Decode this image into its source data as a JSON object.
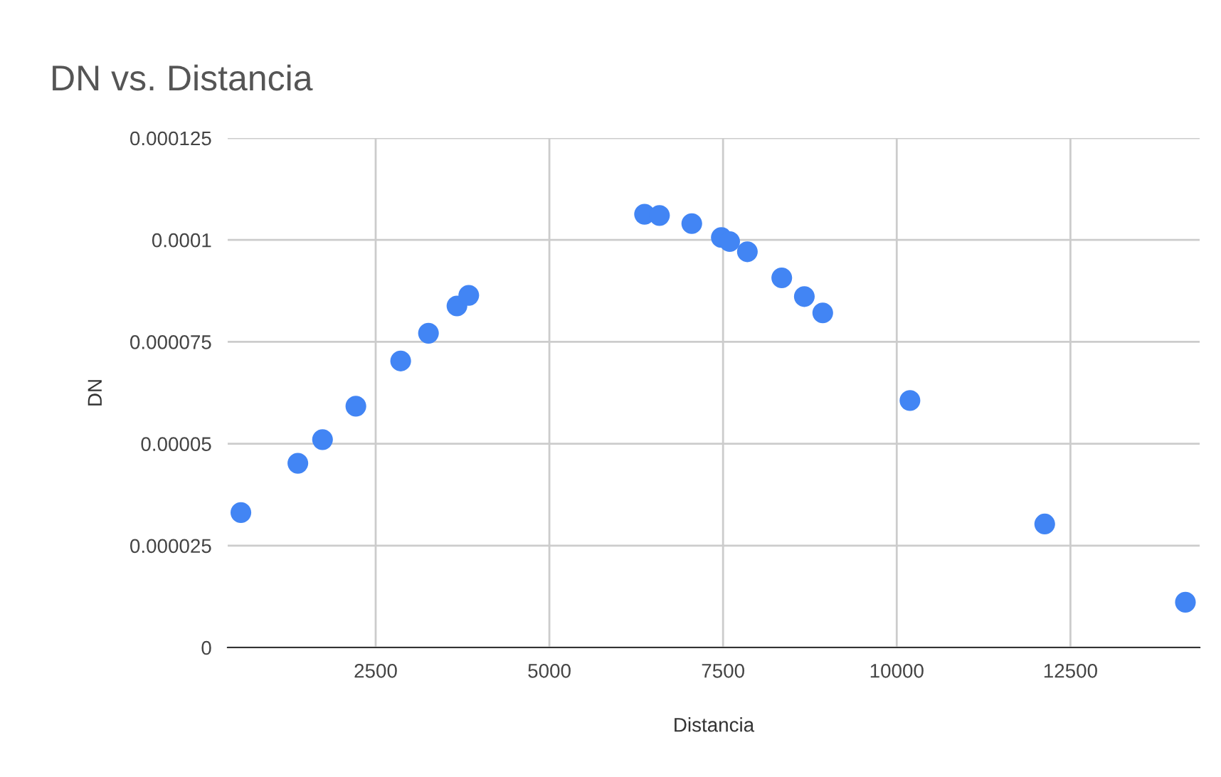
{
  "chart_data": {
    "type": "scatter",
    "title": "DN vs. Distancia",
    "xlabel": "Distancia",
    "ylabel": "DN",
    "x": [
      560,
      1380,
      1735,
      2215,
      2860,
      3260,
      3670,
      3840,
      6370,
      6585,
      7050,
      7475,
      7595,
      7850,
      8345,
      8670,
      8935,
      10190,
      12130,
      14155
    ],
    "series": [
      {
        "color": "#4285f4",
        "values": [
          3.31e-05,
          4.52e-05,
          5.1e-05,
          5.92e-05,
          7.03e-05,
          7.71e-05,
          8.38e-05,
          8.64e-05,
          0.0001063,
          0.000106,
          0.000104,
          0.0001006,
          9.96e-05,
          9.71e-05,
          9.07e-05,
          8.61e-05,
          8.21e-05,
          6.06e-05,
          3.03e-05,
          1.11e-05
        ]
      }
    ],
    "xlim": [
      370,
      14360
    ],
    "ylim": [
      0,
      0.000125
    ],
    "xticks": [
      2500,
      5000,
      7500,
      10000,
      12500
    ],
    "yticks": [
      0,
      {
        "value": 2.5e-05,
        "label": "0.000025"
      },
      {
        "value": 5e-05,
        "label": "0.00005"
      },
      {
        "value": 7.5e-05,
        "label": "0.000075"
      },
      {
        "value": 0.0001,
        "label": "0.0001"
      },
      {
        "value": 0.000125,
        "label": "0.000125"
      }
    ],
    "grid": true,
    "legend": false,
    "marker": "circle"
  }
}
